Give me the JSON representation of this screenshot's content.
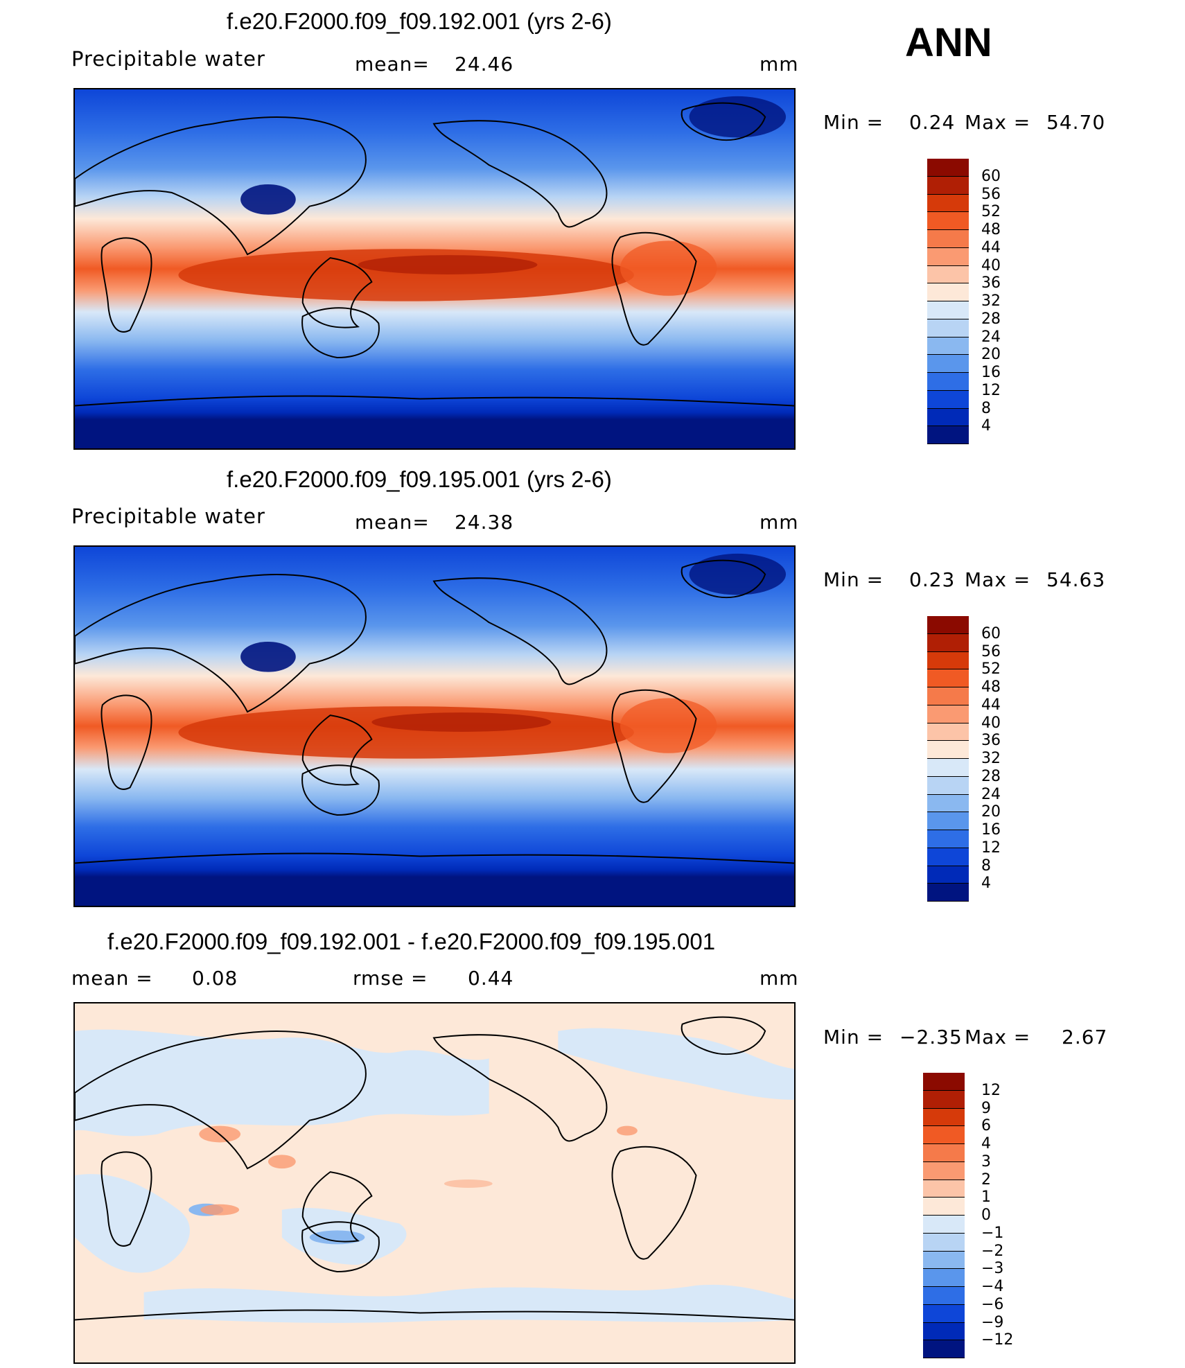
{
  "season": "ANN",
  "panels": [
    {
      "title": "f.e20.F2000.f09_f09.192.001 (yrs 2-6)",
      "left_label": "Precipitable  water",
      "stat1_label": "mean=",
      "stat1_value": "24.46",
      "units": "mm",
      "min_label": "Min  =",
      "min_value": "0.24",
      "max_label": "Max  =",
      "max_value": "54.70"
    },
    {
      "title": "f.e20.F2000.f09_f09.195.001 (yrs 2-6)",
      "left_label": "Precipitable  water",
      "stat1_label": "mean=",
      "stat1_value": "24.38",
      "units": "mm",
      "min_label": "Min  =",
      "min_value": "0.23",
      "max_label": "Max  =",
      "max_value": "54.63"
    },
    {
      "title": "f.e20.F2000.f09_f09.192.001 - f.e20.F2000.f09_f09.195.001",
      "left_label": "mean  =",
      "left_value": "0.08",
      "stat1_label": "rmse  =",
      "stat1_value": "0.44",
      "units": "mm",
      "min_label": "Min  =",
      "min_value": "−2.35",
      "max_label": "Max  =",
      "max_value": "2.67"
    }
  ],
  "colorbars": {
    "abs": {
      "levels": [
        "60",
        "56",
        "52",
        "48",
        "44",
        "40",
        "36",
        "32",
        "28",
        "24",
        "20",
        "16",
        "12",
        "8",
        "4"
      ],
      "colors": [
        "#8b0a00",
        "#b01f05",
        "#d63a0a",
        "#f05a24",
        "#f57a4a",
        "#fa9a72",
        "#fcc4a8",
        "#fde8d8",
        "#d8e8f8",
        "#b8d4f4",
        "#8ab8f0",
        "#5a96ec",
        "#2e6ee6",
        "#0e46d8",
        "#002ab8",
        "#001480"
      ]
    },
    "diff": {
      "levels": [
        "12",
        "9",
        "6",
        "4",
        "3",
        "2",
        "1",
        "0",
        "−1",
        "−2",
        "−3",
        "−4",
        "−6",
        "−9",
        "−12"
      ],
      "colors": [
        "#8b0a00",
        "#b01f05",
        "#d63a0a",
        "#f05a24",
        "#f57a4a",
        "#fa9a72",
        "#fcc4a8",
        "#fde8d8",
        "#d8e8f8",
        "#b8d4f4",
        "#8ab8f0",
        "#5a96ec",
        "#2e6ee6",
        "#0e46d8",
        "#002ab8",
        "#001480"
      ]
    }
  }
}
